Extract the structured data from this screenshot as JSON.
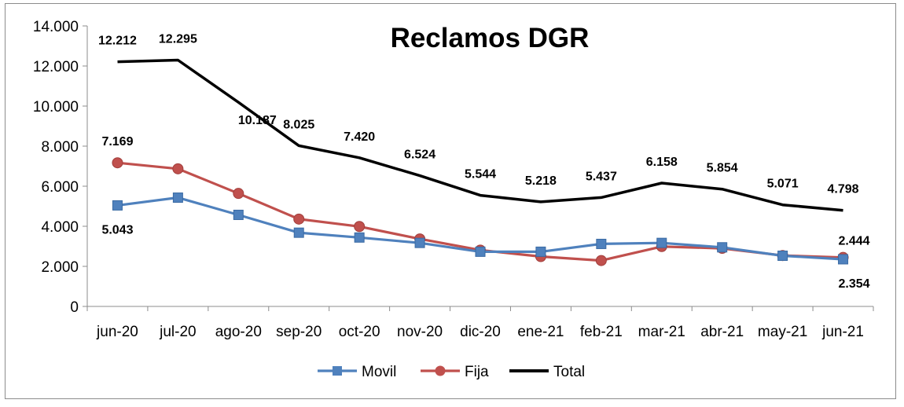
{
  "chart_data": {
    "type": "line",
    "title": "Reclamos DGR",
    "xlabel": "",
    "ylabel": "",
    "categories": [
      "jun-20",
      "jul-20",
      "ago-20",
      "sep-20",
      "oct-20",
      "nov-20",
      "dic-20",
      "ene-21",
      "feb-21",
      "mar-21",
      "abr-21",
      "may-21",
      "jun-21"
    ],
    "ylim": [
      0,
      14000
    ],
    "yticks": [
      0,
      2000,
      4000,
      6000,
      8000,
      10000,
      12000,
      14000
    ],
    "ytick_labels": [
      "0",
      "2.000",
      "4.000",
      "6.000",
      "8.000",
      "10.000",
      "12.000",
      "14.000"
    ],
    "grid": false,
    "legend_position": "bottom",
    "series": [
      {
        "name": "Movil",
        "color": "#4f81bd",
        "marker": "square",
        "values": [
          5043,
          5430,
          4570,
          3680,
          3440,
          3170,
          2730,
          2730,
          3120,
          3170,
          2950,
          2530,
          2354
        ],
        "labels": [
          {
            "index": 0,
            "text": "5.043"
          },
          {
            "index": 12,
            "text": "2.354"
          }
        ]
      },
      {
        "name": "Fija",
        "color": "#c0504d",
        "marker": "circle",
        "values": [
          7169,
          6870,
          5640,
          4360,
          3990,
          3370,
          2810,
          2490,
          2290,
          2990,
          2900,
          2540,
          2444
        ],
        "labels": [
          {
            "index": 0,
            "text": "7.169"
          },
          {
            "index": 12,
            "text": "2.444"
          }
        ]
      },
      {
        "name": "Total",
        "color": "#000000",
        "marker": "none",
        "values": [
          12212,
          12295,
          10187,
          8025,
          7420,
          6524,
          5544,
          5218,
          5437,
          6158,
          5854,
          5071,
          4798
        ],
        "labels": [
          {
            "index": 0,
            "text": "12.212"
          },
          {
            "index": 1,
            "text": "12.295"
          },
          {
            "index": 2,
            "text": "10.187"
          },
          {
            "index": 3,
            "text": "8.025"
          },
          {
            "index": 4,
            "text": "7.420"
          },
          {
            "index": 5,
            "text": "6.524"
          },
          {
            "index": 6,
            "text": "5.544"
          },
          {
            "index": 7,
            "text": "5.218"
          },
          {
            "index": 8,
            "text": "5.437"
          },
          {
            "index": 9,
            "text": "6.158"
          },
          {
            "index": 10,
            "text": "5.854"
          },
          {
            "index": 11,
            "text": "5.071"
          },
          {
            "index": 12,
            "text": "4.798"
          }
        ]
      }
    ]
  }
}
